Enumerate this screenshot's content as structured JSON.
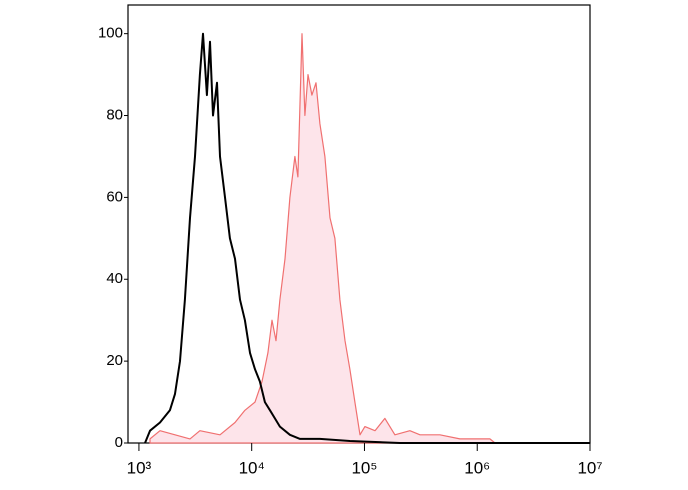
{
  "chart_data": {
    "type": "histogram-overlay",
    "xscale": "log",
    "xlim": [
      800,
      10000000
    ],
    "ylim": [
      0,
      107
    ],
    "xticks": [
      {
        "value": 1000,
        "label": "10³"
      },
      {
        "value": 10000,
        "label": "10⁴"
      },
      {
        "value": 100000,
        "label": "10⁵"
      },
      {
        "value": 1000000,
        "label": "10⁶"
      },
      {
        "value": 10000000,
        "label": "10⁷"
      }
    ],
    "yticks": [
      0,
      20,
      40,
      60,
      80,
      100
    ],
    "series": [
      {
        "color": "#f07070",
        "fill": "#fde4ea",
        "x": [
          1253,
          1538,
          2089,
          2838,
          3475,
          5236,
          7112,
          8710,
          10690,
          12330,
          13930,
          15130,
          16410,
          17780,
          19720,
          21830,
          24160,
          25700,
          27930,
          29650,
          31550,
          34200,
          37150,
          40270,
          44560,
          49430,
          54700,
          60530,
          67140,
          74300,
          82220,
          91200,
          100900,
          123900,
          151700,
          186200,
          252900,
          310500,
          466700,
          701500,
          1294000,
          1436000
        ],
        "values": [
          1,
          3,
          2,
          1,
          3,
          2,
          5,
          8,
          10,
          15,
          22,
          30,
          25,
          35,
          45,
          60,
          70,
          65,
          100,
          80,
          90,
          85,
          88,
          78,
          70,
          55,
          50,
          35,
          25,
          18,
          10,
          2,
          4,
          3,
          6,
          2,
          3,
          2,
          2,
          1,
          1,
          0
        ]
      },
      {
        "color": "#000000",
        "x": [
          1132,
          1253,
          1538,
          1884,
          2089,
          2312,
          2559,
          2838,
          3141,
          3475,
          3698,
          4009,
          4266,
          4539,
          4920,
          5236,
          5794,
          6412,
          7112,
          7870,
          8710,
          9661,
          10690,
          11830,
          13090,
          14520,
          16070,
          17780,
          21830,
          26790,
          40270,
          74300,
          206100,
          10000000
        ],
        "values": [
          0,
          3,
          5,
          8,
          12,
          20,
          35,
          55,
          70,
          90,
          100,
          85,
          98,
          80,
          88,
          70,
          60,
          50,
          45,
          35,
          30,
          22,
          18,
          15,
          10,
          8,
          6,
          4,
          2,
          1,
          1,
          0.5,
          0,
          0
        ]
      }
    ]
  }
}
